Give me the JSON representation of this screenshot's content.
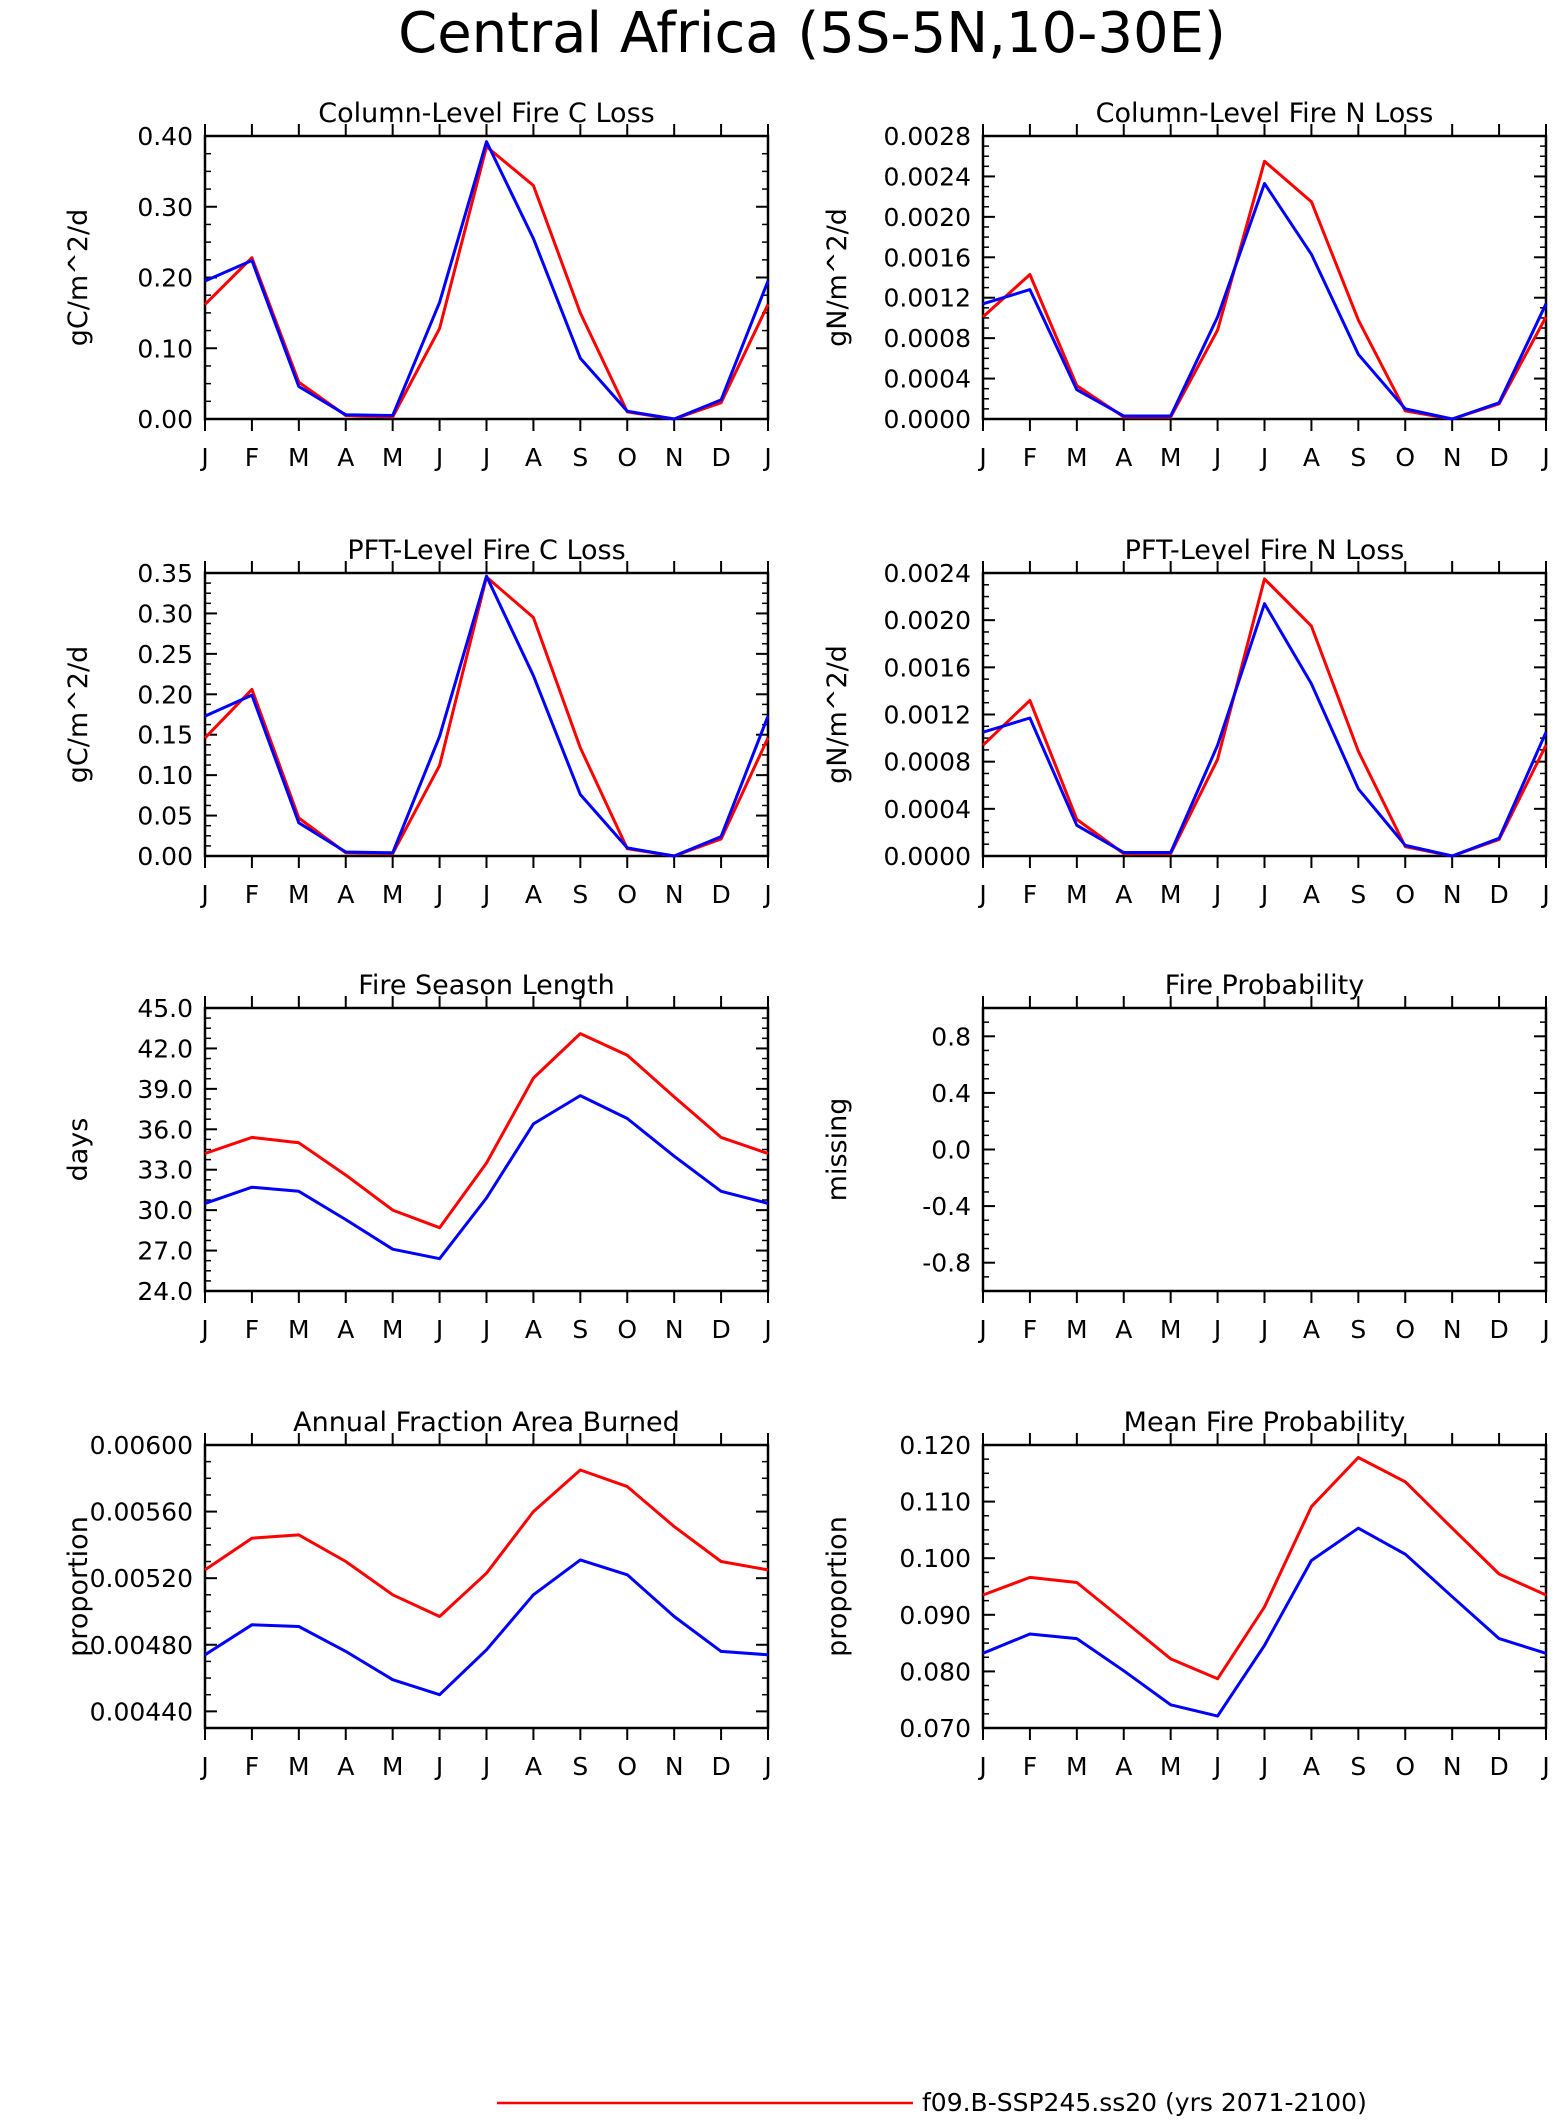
{
  "figure": {
    "title": "Central Africa (5S-5N,10-30E)",
    "series_colors": [
      "#ff0000",
      "#0000ff"
    ],
    "legend": [
      {
        "label": "f09.B-SSP245.ss20 (yrs 2071-2100)",
        "color": "#ff0000"
      }
    ]
  },
  "chart_data": [
    {
      "type": "line",
      "title": "Column-Level Fire C Loss",
      "ylabel": "gC/m^2/d",
      "categories": [
        "J",
        "F",
        "M",
        "A",
        "M",
        "J",
        "J",
        "A",
        "S",
        "O",
        "N",
        "D",
        "J"
      ],
      "ylim": [
        0,
        0.4
      ],
      "yticks": [
        "0.00",
        "0.10",
        "0.20",
        "0.30",
        "0.40"
      ],
      "series": [
        {
          "values": [
            0.162,
            0.228,
            0.052,
            0.005,
            0.003,
            0.128,
            0.385,
            0.33,
            0.15,
            0.01,
            0.0,
            0.023,
            0.162
          ]
        },
        {
          "values": [
            0.195,
            0.224,
            0.046,
            0.006,
            0.005,
            0.165,
            0.392,
            0.255,
            0.086,
            0.011,
            0.0,
            0.027,
            0.195
          ]
        }
      ]
    },
    {
      "type": "line",
      "title": "Column-Level Fire N Loss",
      "ylabel": "gN/m^2/d",
      "categories": [
        "J",
        "F",
        "M",
        "A",
        "M",
        "J",
        "J",
        "A",
        "S",
        "O",
        "N",
        "D",
        "J"
      ],
      "ylim": [
        0,
        0.0028
      ],
      "yticks": [
        "0.0000",
        "0.0004",
        "0.0008",
        "0.0012",
        "0.0016",
        "0.0020",
        "0.0024",
        "0.0028"
      ],
      "series": [
        {
          "values": [
            0.00101,
            0.00143,
            0.00033,
            2e-05,
            2e-05,
            0.00088,
            0.00255,
            0.00215,
            0.00098,
            8e-05,
            0.0,
            0.00015,
            0.00101
          ]
        },
        {
          "values": [
            0.00114,
            0.00128,
            0.00029,
            3e-05,
            3e-05,
            0.00101,
            0.00233,
            0.00163,
            0.00064,
            0.0001,
            0.0,
            0.00016,
            0.00114
          ]
        }
      ]
    },
    {
      "type": "line",
      "title": "PFT-Level Fire C Loss",
      "ylabel": "gC/m^2/d",
      "categories": [
        "J",
        "F",
        "M",
        "A",
        "M",
        "J",
        "J",
        "A",
        "S",
        "O",
        "N",
        "D",
        "J"
      ],
      "ylim": [
        0,
        0.35
      ],
      "yticks": [
        "0.00",
        "0.05",
        "0.10",
        "0.15",
        "0.20",
        "0.25",
        "0.30",
        "0.35"
      ],
      "series": [
        {
          "values": [
            0.146,
            0.206,
            0.047,
            0.004,
            0.003,
            0.112,
            0.345,
            0.295,
            0.134,
            0.009,
            0.0,
            0.021,
            0.146
          ]
        },
        {
          "values": [
            0.173,
            0.199,
            0.041,
            0.005,
            0.004,
            0.148,
            0.346,
            0.223,
            0.076,
            0.01,
            0.0,
            0.024,
            0.173
          ]
        }
      ]
    },
    {
      "type": "line",
      "title": "PFT-Level Fire N Loss",
      "ylabel": "gN/m^2/d",
      "categories": [
        "J",
        "F",
        "M",
        "A",
        "M",
        "J",
        "J",
        "A",
        "S",
        "O",
        "N",
        "D",
        "J"
      ],
      "ylim": [
        0,
        0.0024
      ],
      "yticks": [
        "0.0000",
        "0.0004",
        "0.0008",
        "0.0012",
        "0.0016",
        "0.0020",
        "0.0024"
      ],
      "series": [
        {
          "values": [
            0.00094,
            0.00132,
            0.00031,
            2e-05,
            2e-05,
            0.00082,
            0.00235,
            0.00195,
            0.00089,
            8e-05,
            0.0,
            0.00014,
            0.00094
          ]
        },
        {
          "values": [
            0.00105,
            0.00117,
            0.00026,
            3e-05,
            3e-05,
            0.00094,
            0.00214,
            0.00146,
            0.00057,
            9e-05,
            0.0,
            0.00015,
            0.00105
          ]
        }
      ]
    },
    {
      "type": "line",
      "title": "Fire Season Length",
      "ylabel": "days",
      "categories": [
        "J",
        "F",
        "M",
        "A",
        "M",
        "J",
        "J",
        "A",
        "S",
        "O",
        "N",
        "D",
        "J"
      ],
      "ylim": [
        24,
        45
      ],
      "yticks": [
        "24.0",
        "27.0",
        "30.0",
        "33.0",
        "36.0",
        "39.0",
        "42.0",
        "45.0"
      ],
      "series": [
        {
          "values": [
            34.2,
            35.4,
            35.0,
            32.6,
            30.0,
            28.7,
            33.5,
            39.8,
            43.1,
            41.5,
            38.4,
            35.4,
            34.2
          ]
        },
        {
          "values": [
            30.5,
            31.7,
            31.4,
            29.3,
            27.1,
            26.4,
            30.9,
            36.4,
            38.5,
            36.8,
            34.0,
            31.4,
            30.5
          ]
        }
      ]
    },
    {
      "type": "line",
      "title": "Fire Probability",
      "ylabel": "missing",
      "categories": [
        "J",
        "F",
        "M",
        "A",
        "M",
        "J",
        "J",
        "A",
        "S",
        "O",
        "N",
        "D",
        "J"
      ],
      "ylim": [
        -1,
        1
      ],
      "yticks": [
        "-0.8",
        "-0.4",
        "0.0",
        "0.4",
        "0.8"
      ],
      "series": []
    },
    {
      "type": "line",
      "title": "Annual Fraction Area Burned",
      "ylabel": "proportion",
      "categories": [
        "J",
        "F",
        "M",
        "A",
        "M",
        "J",
        "J",
        "A",
        "S",
        "O",
        "N",
        "D",
        "J"
      ],
      "ylim": [
        0.0043,
        0.006
      ],
      "yticks": [
        "0.00440",
        "0.00480",
        "0.00520",
        "0.00560",
        "0.00600"
      ],
      "series": [
        {
          "values": [
            0.00525,
            0.00544,
            0.00546,
            0.0053,
            0.0051,
            0.00497,
            0.00523,
            0.0056,
            0.00585,
            0.00575,
            0.00551,
            0.0053,
            0.00525
          ]
        },
        {
          "values": [
            0.00474,
            0.00492,
            0.00491,
            0.00476,
            0.00459,
            0.0045,
            0.00477,
            0.0051,
            0.00531,
            0.00522,
            0.00497,
            0.00476,
            0.00474
          ]
        }
      ]
    },
    {
      "type": "line",
      "title": "Mean Fire Probability",
      "ylabel": "proportion",
      "categories": [
        "J",
        "F",
        "M",
        "A",
        "M",
        "J",
        "J",
        "A",
        "S",
        "O",
        "N",
        "D",
        "J"
      ],
      "ylim": [
        0.07,
        0.12
      ],
      "yticks": [
        "0.070",
        "0.080",
        "0.090",
        "0.100",
        "0.110",
        "0.120"
      ],
      "series": [
        {
          "values": [
            0.0935,
            0.0966,
            0.0957,
            0.089,
            0.0822,
            0.0787,
            0.0914,
            0.1091,
            0.1178,
            0.1135,
            0.1053,
            0.0972,
            0.0935
          ]
        },
        {
          "values": [
            0.0832,
            0.0866,
            0.0858,
            0.0801,
            0.0741,
            0.0721,
            0.0846,
            0.0996,
            0.1053,
            0.1007,
            0.0932,
            0.0858,
            0.0832
          ]
        }
      ]
    }
  ]
}
